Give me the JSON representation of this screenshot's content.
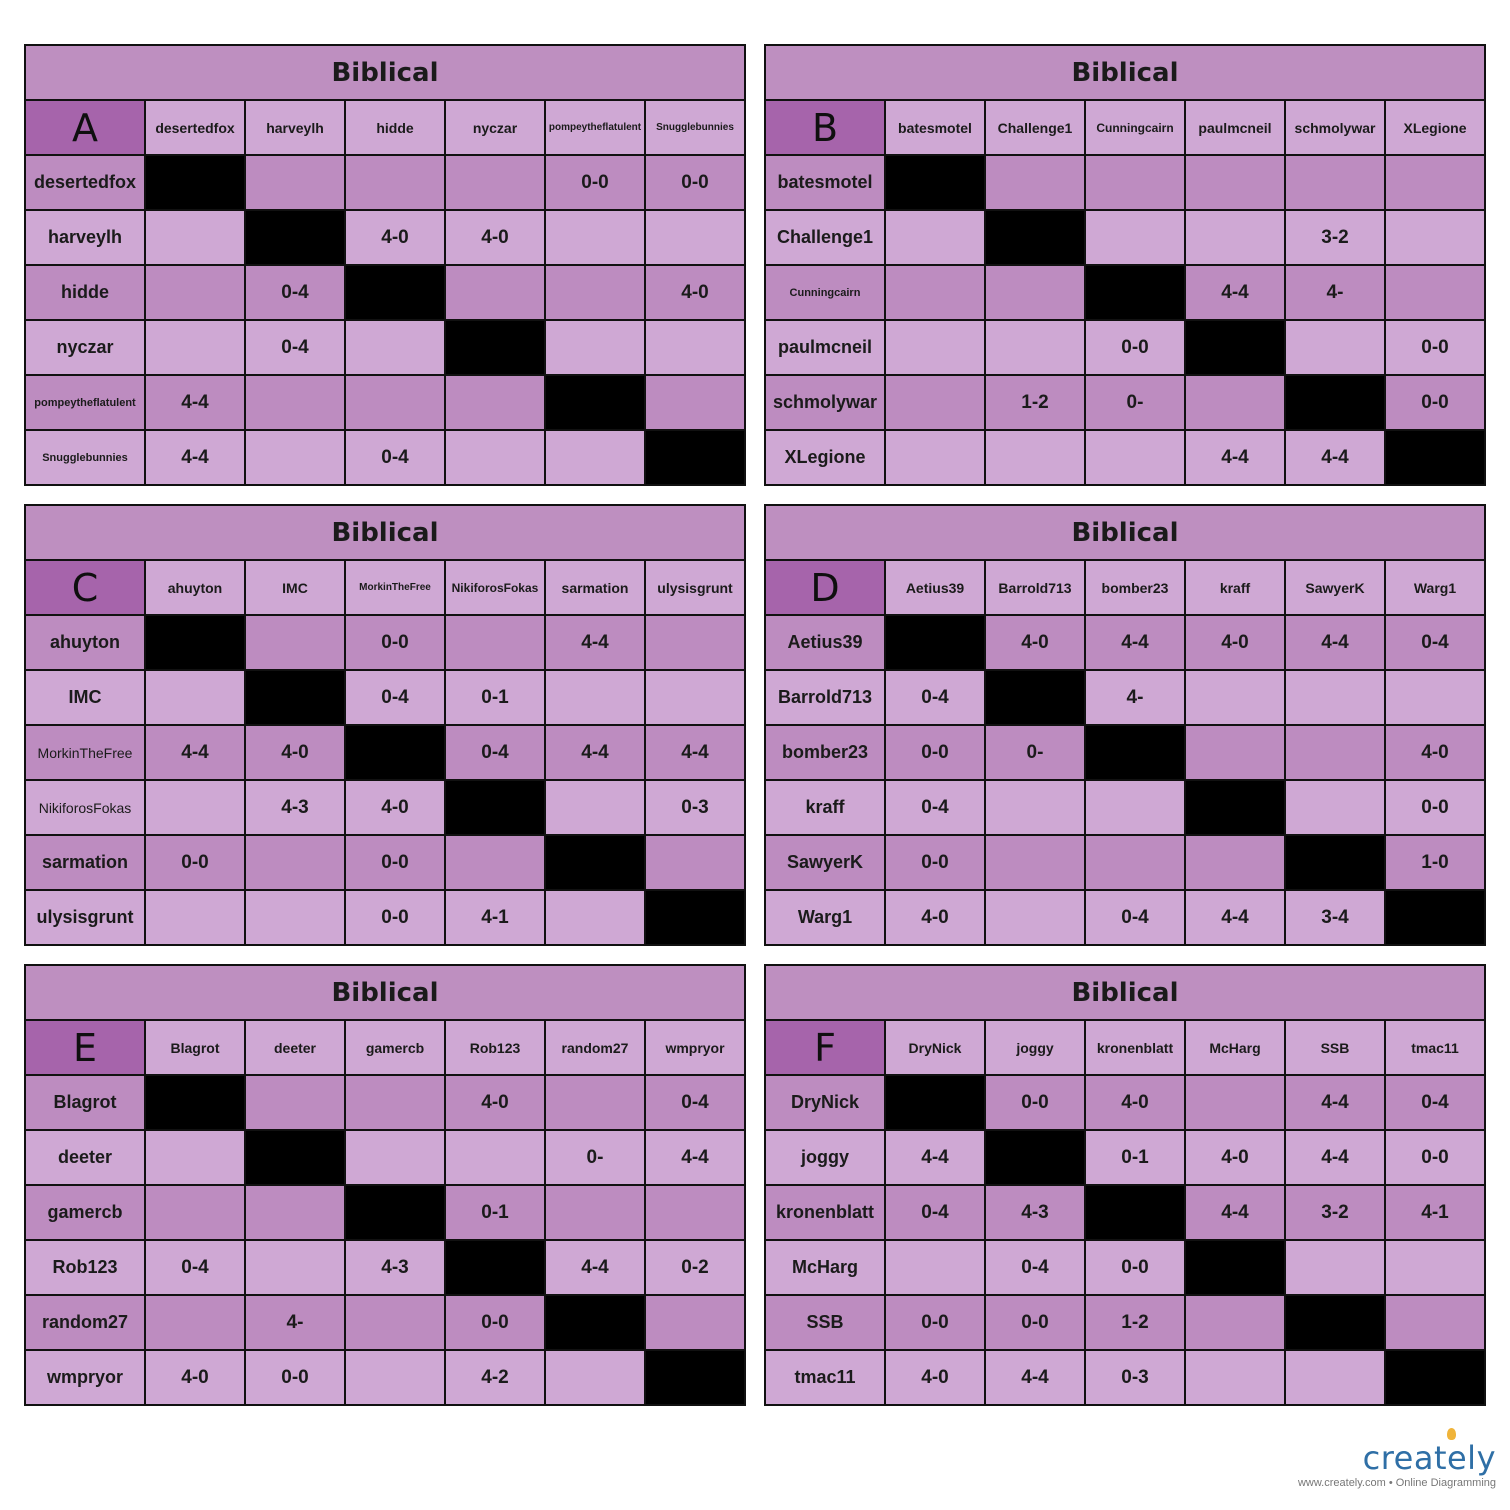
{
  "groups": [
    {
      "title": "Biblical",
      "letter": "A",
      "players": [
        "desertedfox",
        "harveylh",
        "hidde",
        "nyczar",
        "pompeytheflatulent",
        "Snugglebunnies"
      ],
      "results": [
        [
          "",
          "",
          "",
          "",
          "0-0",
          "0-0"
        ],
        [
          "",
          "",
          "4-0",
          "4-0",
          "",
          ""
        ],
        [
          "",
          "0-4",
          "",
          "",
          "",
          "4-0"
        ],
        [
          "",
          "0-4",
          "",
          "",
          "",
          ""
        ],
        [
          "4-4",
          "",
          "",
          "",
          "",
          ""
        ],
        [
          "4-4",
          "",
          "0-4",
          "",
          "",
          ""
        ]
      ]
    },
    {
      "title": "Biblical",
      "letter": "B",
      "players": [
        "batesmotel",
        "Challenge1",
        "Cunningcairn",
        "paulmcneil",
        "schmolywar",
        "XLegione"
      ],
      "results": [
        [
          "",
          "",
          "",
          "",
          "",
          ""
        ],
        [
          "",
          "",
          "",
          "",
          "3-2",
          ""
        ],
        [
          "",
          "",
          "",
          "4-4",
          "4-",
          ""
        ],
        [
          "",
          "",
          "0-0",
          "",
          "",
          "0-0"
        ],
        [
          "",
          "1-2",
          "0-",
          "",
          "",
          "0-0"
        ],
        [
          "",
          "",
          "",
          "4-4",
          "4-4",
          ""
        ]
      ]
    },
    {
      "title": "Biblical",
      "letter": "C",
      "players": [
        "ahuyton",
        "IMC",
        "MorkinTheFree",
        "NikiforosFokas",
        "sarmation",
        "ulysisgrunt"
      ],
      "results": [
        [
          "",
          "",
          "0-0",
          "",
          "4-4",
          ""
        ],
        [
          "",
          "",
          "0-4",
          "0-1",
          "",
          ""
        ],
        [
          "4-4",
          "4-0",
          "",
          "0-4",
          "4-4",
          "4-4"
        ],
        [
          "",
          "4-3",
          "4-0",
          "",
          "",
          "0-3"
        ],
        [
          "0-0",
          "",
          "0-0",
          "",
          "",
          ""
        ],
        [
          "",
          "",
          "0-0",
          "4-1",
          "",
          ""
        ]
      ]
    },
    {
      "title": "Biblical",
      "letter": "D",
      "players": [
        "Aetius39",
        "Barrold713",
        "bomber23",
        "kraff",
        "SawyerK",
        "Warg1"
      ],
      "results": [
        [
          "",
          "4-0",
          "4-4",
          "4-0",
          "4-4",
          "0-4"
        ],
        [
          "0-4",
          "",
          "4-",
          "",
          "",
          ""
        ],
        [
          "0-0",
          "0-",
          "",
          "",
          "",
          "4-0"
        ],
        [
          "0-4",
          "",
          "",
          "",
          "",
          "0-0"
        ],
        [
          "0-0",
          "",
          "",
          "",
          "",
          "1-0"
        ],
        [
          "4-0",
          "",
          "0-4",
          "4-4",
          "3-4",
          ""
        ]
      ]
    },
    {
      "title": "Biblical",
      "letter": "E",
      "players": [
        "Blagrot",
        "deeter",
        "gamercb",
        "Rob123",
        "random27",
        "wmpryor"
      ],
      "results": [
        [
          "",
          "",
          "",
          "4-0",
          "",
          "0-4"
        ],
        [
          "",
          "",
          "",
          "",
          "0-",
          "4-4"
        ],
        [
          "",
          "",
          "",
          "0-1",
          "",
          ""
        ],
        [
          "0-4",
          "",
          "4-3",
          "",
          "4-4",
          "0-2"
        ],
        [
          "",
          "4-",
          "",
          "0-0",
          "",
          ""
        ],
        [
          "4-0",
          "0-0",
          "",
          "4-2",
          "",
          ""
        ]
      ]
    },
    {
      "title": "Biblical",
      "letter": "F",
      "players": [
        "DryNick",
        "joggy",
        "kronenblatt",
        "McHarg",
        "SSB",
        "tmac11"
      ],
      "results": [
        [
          "",
          "0-0",
          "4-0",
          "",
          "4-4",
          "0-4"
        ],
        [
          "4-4",
          "",
          "0-1",
          "4-0",
          "4-4",
          "0-0"
        ],
        [
          "0-4",
          "4-3",
          "",
          "4-4",
          "3-2",
          "4-1"
        ],
        [
          "",
          "0-4",
          "0-0",
          "",
          "",
          ""
        ],
        [
          "0-0",
          "0-0",
          "1-2",
          "",
          "",
          ""
        ],
        [
          "4-0",
          "4-4",
          "0-3",
          "",
          "",
          ""
        ]
      ]
    }
  ],
  "logo": {
    "wordmark": "creately",
    "tagline": "www.creately.com • Online Diagramming"
  },
  "colors": {
    "title_bg": "#be8fc0",
    "cell_light": "#cfa8d4",
    "cell_dark": "#bd8cc0",
    "letter_bg": "#a664ab",
    "diagonal": "#000000",
    "logo_blue": "#2f6fa6"
  }
}
